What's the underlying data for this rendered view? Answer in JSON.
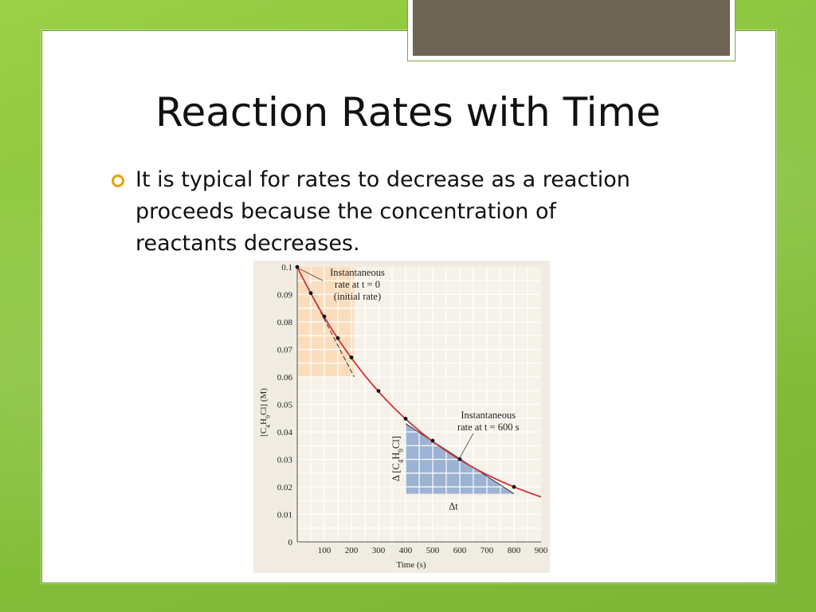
{
  "slide": {
    "title": "Reaction Rates with Time",
    "bullet": "It is typical for rates to decrease as a reaction proceeds because the concentration of reactants decreases."
  },
  "colors": {
    "background": "#8cc63f",
    "bullet_accent": "#e8a20e",
    "curve": "#d1323b",
    "initial_rate_fill": "#fbd9b5",
    "rate_600_fill": "#9db3d3",
    "chart_bg": "#f1ece1"
  },
  "chart_data": {
    "type": "line",
    "xlabel": "Time (s)",
    "ylabel_parts": [
      "[C",
      "4",
      "H",
      "9",
      "Cl] (M)"
    ],
    "xlim": [
      0,
      900
    ],
    "ylim": [
      0,
      0.1
    ],
    "x_ticks": [
      "100",
      "200",
      "300",
      "400",
      "500",
      "600",
      "700",
      "800",
      "900"
    ],
    "y_ticks": [
      "0",
      "0.01",
      "0.02",
      "0.03",
      "0.04",
      "0.05",
      "0.06",
      "0.07",
      "0.08",
      "0.09",
      "0.1"
    ],
    "grid": true,
    "series": [
      {
        "x": [
          0,
          50,
          100,
          150,
          200,
          300,
          400,
          500,
          600,
          800
        ],
        "y": [
          0.1,
          0.0905,
          0.082,
          0.0741,
          0.0671,
          0.0549,
          0.0448,
          0.0368,
          0.0301,
          0.02
        ]
      }
    ],
    "annotations": {
      "initial": {
        "lines": [
          "Instantaneous",
          "rate at t = 0",
          "(initial rate)"
        ],
        "tangent": [
          [
            0,
            0.1
          ],
          [
            210,
            0.06
          ]
        ],
        "shade_x": [
          0,
          210
        ],
        "shade_y": [
          0.06,
          0.1
        ]
      },
      "at600": {
        "lines": [
          "Instantaneous",
          "rate at t = 600 s"
        ],
        "triangle": [
          [
            400,
            0.043
          ],
          [
            400,
            0.0175
          ],
          [
            800,
            0.0175
          ]
        ],
        "dy_label_parts": [
          "Δ [C",
          "4",
          "H",
          "9",
          "Cl]"
        ],
        "dt_label": "Δt"
      }
    }
  }
}
